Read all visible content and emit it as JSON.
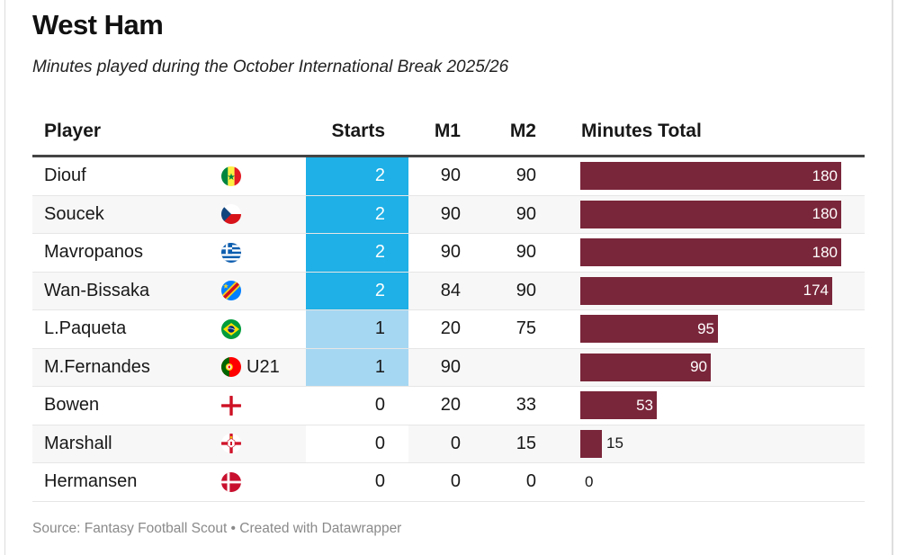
{
  "header": {
    "title": "West Ham",
    "subtitle": "Minutes played during the October International Break 2025/26"
  },
  "table": {
    "columns": {
      "player": "Player",
      "starts": "Starts",
      "m1": "M1",
      "m2": "M2",
      "total": "Minutes Total"
    },
    "rows": [
      {
        "player": "Diouf",
        "flag": "senegal-flag-icon",
        "note": "",
        "starts": "2",
        "m1": "90",
        "m2": "90",
        "total": "180"
      },
      {
        "player": "Soucek",
        "flag": "czech-republic-flag-icon",
        "note": "",
        "starts": "2",
        "m1": "90",
        "m2": "90",
        "total": "180"
      },
      {
        "player": "Mavropanos",
        "flag": "greece-flag-icon",
        "note": "",
        "starts": "2",
        "m1": "90",
        "m2": "90",
        "total": "180"
      },
      {
        "player": "Wan-Bissaka",
        "flag": "dr-congo-flag-icon",
        "note": "",
        "starts": "2",
        "m1": "84",
        "m2": "90",
        "total": "174"
      },
      {
        "player": "L.Paqueta",
        "flag": "brazil-flag-icon",
        "note": "",
        "starts": "1",
        "m1": "20",
        "m2": "75",
        "total": "95"
      },
      {
        "player": "M.Fernandes",
        "flag": "portugal-flag-icon",
        "note": "U21",
        "starts": "1",
        "m1": "90",
        "m2": "",
        "total": "90"
      },
      {
        "player": "Bowen",
        "flag": "england-flag-icon",
        "note": "",
        "starts": "0",
        "m1": "20",
        "m2": "33",
        "total": "53"
      },
      {
        "player": "Marshall",
        "flag": "northern-ireland-flag-icon",
        "note": "",
        "starts": "0",
        "m1": "0",
        "m2": "15",
        "total": "15"
      },
      {
        "player": "Hermansen",
        "flag": "denmark-flag-icon",
        "note": "",
        "starts": "0",
        "m1": "0",
        "m2": "0",
        "total": "0"
      }
    ]
  },
  "colors": {
    "bar": "#7a263a",
    "starts_2": "#1eb0e6",
    "starts_1": "#a6d7f2",
    "starts_0": "#ffffff"
  },
  "footer": {
    "source": "Source: Fantasy Football Scout • Created with Datawrapper"
  },
  "chart_data": {
    "type": "table",
    "title": "West Ham",
    "subtitle": "Minutes played during the October International Break 2025/26",
    "columns": [
      "Player",
      "Starts",
      "M1",
      "M2",
      "Minutes Total"
    ],
    "categories": [
      "Diouf",
      "Soucek",
      "Mavropanos",
      "Wan-Bissaka",
      "L.Paqueta",
      "M.Fernandes",
      "Bowen",
      "Marshall",
      "Hermansen"
    ],
    "series": [
      {
        "name": "Starts",
        "values": [
          2,
          2,
          2,
          2,
          1,
          1,
          0,
          0,
          0
        ]
      },
      {
        "name": "M1",
        "values": [
          90,
          90,
          90,
          84,
          20,
          90,
          20,
          0,
          0
        ]
      },
      {
        "name": "M2",
        "values": [
          90,
          90,
          90,
          90,
          75,
          null,
          33,
          15,
          0
        ]
      },
      {
        "name": "Minutes Total",
        "values": [
          180,
          180,
          180,
          174,
          95,
          90,
          53,
          15,
          0
        ]
      }
    ],
    "annotations": [
      "M.Fernandes: U21"
    ],
    "bar_column": "Minutes Total",
    "bar_range": [
      0,
      180
    ],
    "source": "Source: Fantasy Football Scout • Created with Datawrapper"
  }
}
